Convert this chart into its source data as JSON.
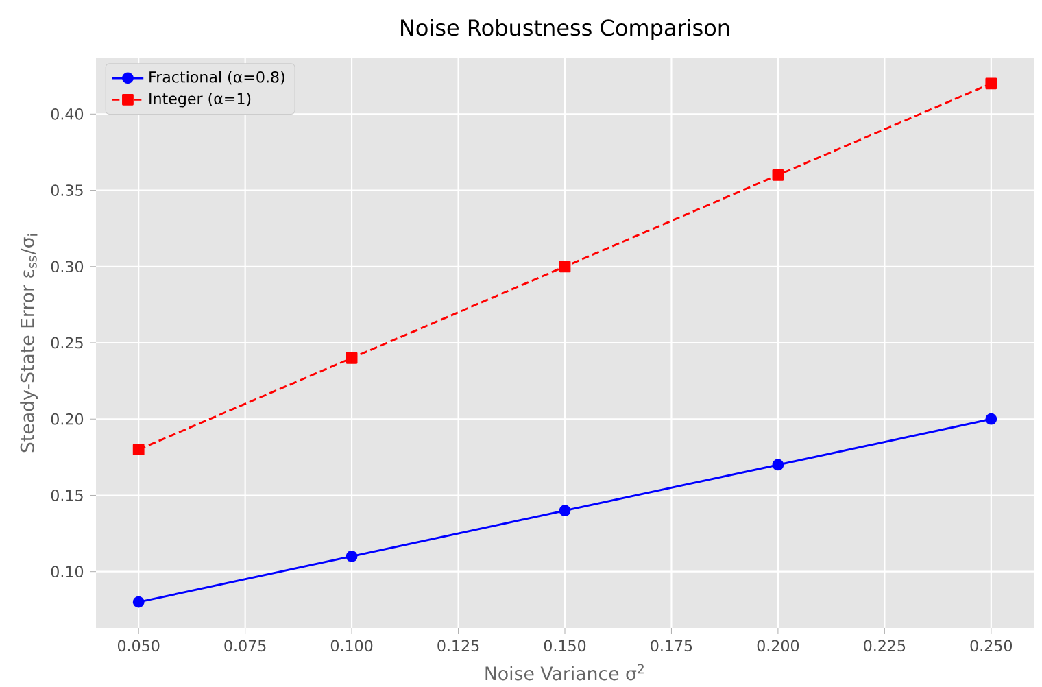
{
  "chart_data": {
    "type": "line",
    "title": "Noise Robustness Comparison",
    "xlabel": "Noise Variance σ$^{2}$",
    "ylabel": "Steady-State Error ε$_{ss}$/σ$_{i}$",
    "x": [
      0.05,
      0.1,
      0.15,
      0.2,
      0.25
    ],
    "series": [
      {
        "name": "Fractional (α=0.8)",
        "color": "#0000ff",
        "marker": "circle",
        "line_style": "solid",
        "values": [
          0.08,
          0.11,
          0.14,
          0.17,
          0.2
        ]
      },
      {
        "name": "Integer (α=1)",
        "color": "#ff0000",
        "marker": "square",
        "line_style": "dashed",
        "values": [
          0.18,
          0.24,
          0.3,
          0.36,
          0.42
        ]
      }
    ],
    "xlim": [
      0.04,
      0.26
    ],
    "ylim": [
      0.063,
      0.437
    ],
    "xticks": [
      {
        "value": 0.05,
        "label": "0.050"
      },
      {
        "value": 0.075,
        "label": "0.075"
      },
      {
        "value": 0.1,
        "label": "0.100"
      },
      {
        "value": 0.125,
        "label": "0.125"
      },
      {
        "value": 0.15,
        "label": "0.150"
      },
      {
        "value": 0.175,
        "label": "0.175"
      },
      {
        "value": 0.2,
        "label": "0.200"
      },
      {
        "value": 0.225,
        "label": "0.225"
      },
      {
        "value": 0.25,
        "label": "0.250"
      }
    ],
    "yticks": [
      {
        "value": 0.1,
        "label": "0.10"
      },
      {
        "value": 0.15,
        "label": "0.15"
      },
      {
        "value": 0.2,
        "label": "0.20"
      },
      {
        "value": 0.25,
        "label": "0.25"
      },
      {
        "value": 0.3,
        "label": "0.30"
      },
      {
        "value": 0.35,
        "label": "0.35"
      },
      {
        "value": 0.4,
        "label": "0.40"
      }
    ],
    "grid": true,
    "legend": "top left"
  }
}
